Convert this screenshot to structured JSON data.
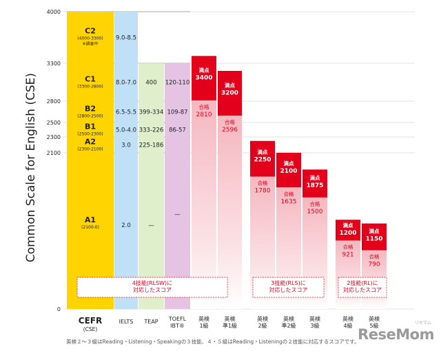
{
  "chart_data": {
    "type": "bar",
    "ylabel": "Common Scale for English (CSE)",
    "ylim": [
      0,
      4000
    ],
    "yticks": [
      "4000",
      "3300",
      "2800",
      "2500",
      "2300",
      "2100",
      "0"
    ],
    "cefr": {
      "axis_label": "CEFR",
      "axis_sublabel": "(CSE)",
      "levels": [
        {
          "level": "C2",
          "range": "(4000-3300)",
          "note": "※調査中",
          "ielts": "9.0-8.5",
          "teap": "",
          "toefl": "",
          "top": 4000,
          "bottom": 3300
        },
        {
          "level": "C1",
          "range": "(3300-2800)",
          "note": "",
          "ielts": "8.0-7.0",
          "teap": "400",
          "toefl": "120-110",
          "top": 3300,
          "bottom": 2800
        },
        {
          "level": "B2",
          "range": "(2800-2500)",
          "note": "",
          "ielts": "6.5-5.5",
          "teap": "399-334",
          "toefl": "109-87",
          "top": 2800,
          "bottom": 2500
        },
        {
          "level": "B1",
          "range": "(2500-2300)",
          "note": "",
          "ielts": "5.0-4.0",
          "teap": "333-226",
          "toefl": "86-57",
          "top": 2500,
          "bottom": 2300
        },
        {
          "level": "A2",
          "range": "(2300-2100)",
          "note": "",
          "ielts": "3.0",
          "teap": "225-186",
          "toefl": "",
          "top": 2300,
          "bottom": 2100
        },
        {
          "level": "A1",
          "range": "(2100-0)",
          "note": "",
          "ielts": "2.0",
          "teap": "—",
          "toefl": "—",
          "top": 2100,
          "bottom": 0
        }
      ]
    },
    "columns": [
      "IELTS",
      "TEAP",
      "TOEFL\nIBT®"
    ],
    "eiken_label_top": "満点",
    "eiken_label_pass": "合格",
    "eiken": [
      {
        "name": "英検\n1級",
        "perfect": 3400,
        "pass": 2810
      },
      {
        "name": "英検\n準1級",
        "perfect": 3200,
        "pass": 2596
      },
      {
        "name": "英検\n2級",
        "perfect": 2250,
        "pass": 1780
      },
      {
        "name": "英検\n準2級",
        "perfect": 2100,
        "pass": 1635
      },
      {
        "name": "英検\n3級",
        "perfect": 1875,
        "pass": 1500
      },
      {
        "name": "英検\n4級",
        "perfect": 1200,
        "pass": 921
      },
      {
        "name": "英検\n5級",
        "perfect": 1150,
        "pass": 790
      }
    ],
    "skill_boxes": [
      {
        "text": "4技能(RLSW)に\n対応したスコア"
      },
      {
        "text": "3技能(RLS)に\n対応したスコア"
      },
      {
        "text": "2技能(RL)に\n対応したスコア"
      }
    ],
    "colors": {
      "cefr": "#ffd400",
      "ielts": "#bfe0f7",
      "teap": "#dfeecb",
      "toefl": "#e4c4e2",
      "eiken_top": "#e3001b",
      "eiken_pass": "#f7cbd0",
      "box_border": "#e3001b",
      "axis_text": "#222222"
    }
  },
  "footnote": "英検２～３級はReading・Listening・Speakingの３技能、４・５級はReading・Listeningの２技能に対応するスコアです。",
  "watermark": {
    "brand": "ReseMom",
    "sub": "リセマム"
  }
}
